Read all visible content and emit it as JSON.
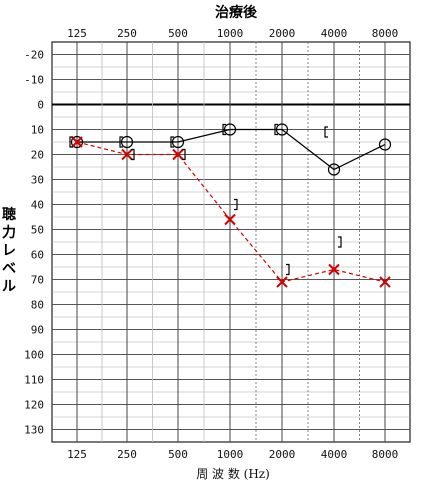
{
  "chart_data": {
    "type": "line",
    "title": "治療後",
    "ylabel": "聴力レベル",
    "xlabel": "周 波 数 (Hz)",
    "x": [
      "125",
      "250",
      "500",
      "1000",
      "2000",
      "4000",
      "8000"
    ],
    "ylim": [
      -25,
      135
    ],
    "yticks": [
      -20,
      -10,
      0,
      10,
      20,
      30,
      40,
      50,
      60,
      70,
      80,
      90,
      100,
      110,
      120,
      130
    ],
    "y_inverted": true,
    "grid": true,
    "series": [
      {
        "marker": "circle",
        "line": "solid",
        "color": "#000000",
        "values": [
          15,
          15,
          15,
          10,
          10,
          26,
          16
        ]
      },
      {
        "marker": "cross",
        "line": "dashed",
        "color": "#d40000",
        "values": [
          15,
          20,
          20,
          46,
          71,
          66,
          71
        ]
      },
      {
        "marker": "bracket-left",
        "color": "#000000",
        "values": [
          15,
          15,
          15,
          10,
          10,
          11,
          null
        ]
      },
      {
        "marker": "bracket-right",
        "color": "#000000",
        "values": [
          null,
          20,
          20,
          40,
          66,
          55,
          null
        ]
      }
    ]
  }
}
